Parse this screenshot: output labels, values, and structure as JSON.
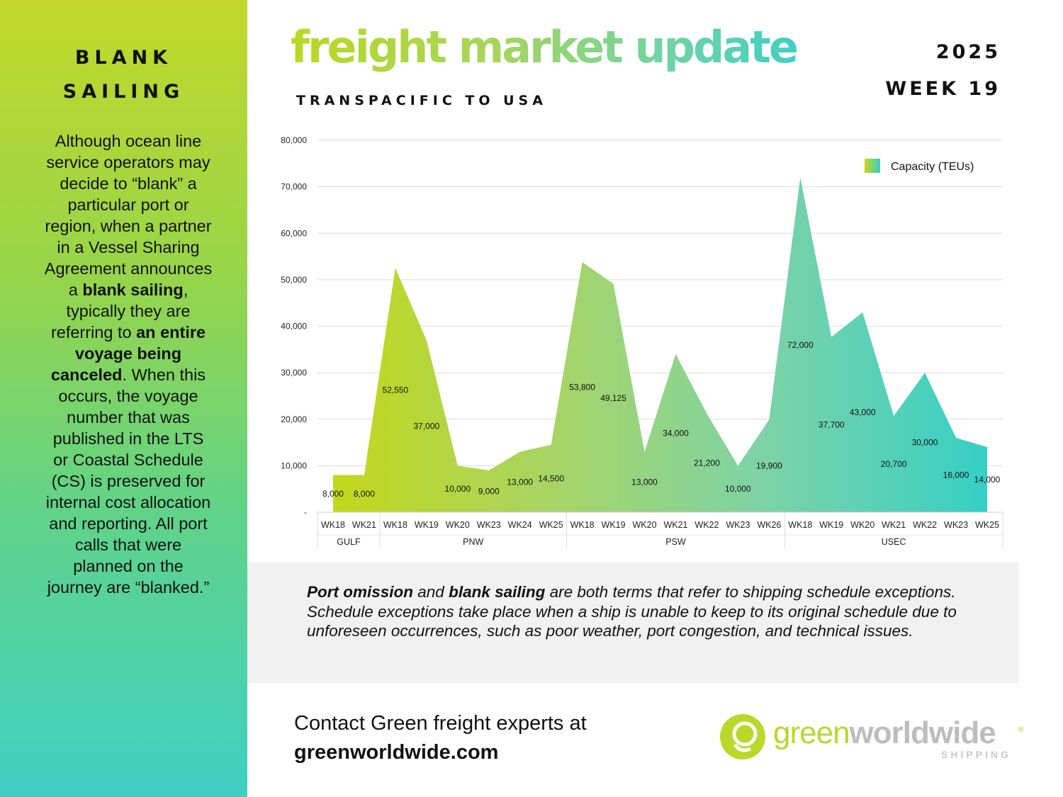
{
  "sidebar": {
    "title_line1": "BLANK",
    "title_line2": "SAILING",
    "p1": "Although ocean line service operators may decide to “blank” a particular port or region, when a partner in a Vessel Sharing Agreement announces a ",
    "p1_bold": "blank sailing",
    "p2": ", typically they are referring to ",
    "p2_bold": "an entire voyage being canceled",
    "p3": ". When this occurs, the voyage number that was published in the LTS or Coastal Schedule (CS) is preserved for internal cost allocation and reporting. All port calls that were planned on the journey are “blanked.”"
  },
  "header": {
    "title": "freight market update",
    "subtitle": "TRANSPACIFIC TO USA",
    "year": "2025",
    "week": "WEEK 19"
  },
  "colors": {
    "gradient_start": "#c3d82a",
    "gradient_end": "#3ecfc3",
    "info_bg": "#f1f1f1"
  },
  "chart_data": {
    "type": "area",
    "title": "",
    "xlabel": "",
    "ylabel": "",
    "ylim": [
      0,
      80000
    ],
    "yticks": [
      "-",
      "10,000",
      "20,000",
      "30,000",
      "40,000",
      "50,000",
      "60,000",
      "70,000",
      "80,000"
    ],
    "grid": true,
    "legend_position": "top-right",
    "series": [
      {
        "name": "Capacity (TEUs)",
        "values": [
          8000,
          8000,
          52550,
          37000,
          10000,
          9000,
          13000,
          14500,
          53800,
          49125,
          13000,
          34000,
          21200,
          10000,
          19900,
          72000,
          37700,
          43000,
          20700,
          30000,
          16000,
          14000
        ],
        "labels": [
          "8,000",
          "8,000",
          "52,550",
          "37,000",
          "10,000",
          "9,000",
          "13,000",
          "14,500",
          "53,800",
          "49,125",
          "13,000",
          "34,000",
          "21,200",
          "10,000",
          "19,900",
          "72,000",
          "37,700",
          "43,000",
          "20,700",
          "30,000",
          "16,000",
          "14,000"
        ]
      }
    ],
    "categories": [
      "WK18",
      "WK21",
      "WK18",
      "WK19",
      "WK20",
      "WK23",
      "WK24",
      "WK25",
      "WK18",
      "WK19",
      "WK20",
      "WK21",
      "WK22",
      "WK23",
      "WK26",
      "WK18",
      "WK19",
      "WK20",
      "WK21",
      "WK22",
      "WK23",
      "WK25"
    ],
    "groups": [
      {
        "name": "GULF",
        "count": 2
      },
      {
        "name": "PNW",
        "count": 6
      },
      {
        "name": "PSW",
        "count": 7
      },
      {
        "name": "USEC",
        "count": 7
      }
    ]
  },
  "info": {
    "b1": "Port omission",
    "t1": " and ",
    "b2": "blank sailing",
    "t2": " are both terms that refer to shipping schedule exceptions. Schedule exceptions take place when a ship is unable to keep to its original schedule due to unforeseen occurrences, such as poor weather, port congestion, and technical issues."
  },
  "footer": {
    "contact": "Contact Green freight experts at",
    "url": "greenworldwide.com",
    "logo_green": "green",
    "logo_ww": "worldwide",
    "logo_sub": "SHIPPING",
    "logo_reg": "®"
  }
}
